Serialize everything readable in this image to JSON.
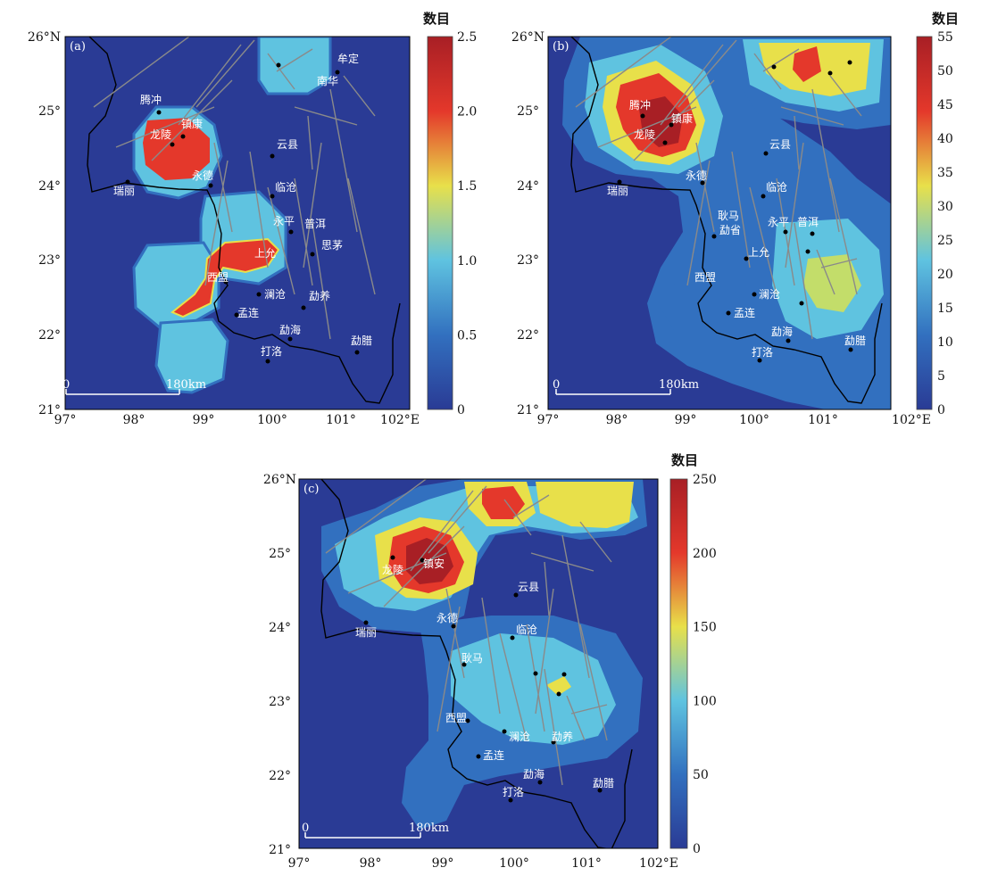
{
  "colorbar_title": "数目",
  "axis": {
    "lon_ticks": [
      "97°",
      "98°",
      "99°",
      "100°",
      "101°",
      "102°E"
    ],
    "lat_ticks": [
      "21°",
      "22°",
      "23°",
      "24°",
      "25°",
      "26°N"
    ],
    "lon_range": [
      97,
      102
    ],
    "lat_range": [
      21,
      26
    ]
  },
  "scale_bar": {
    "start": "0",
    "end": "180km"
  },
  "colors": {
    "background": "#2a3b95",
    "cmap": [
      "#2a3b95",
      "#3270bf",
      "#5fc3e0",
      "#e8e04a",
      "#e4382b",
      "#a81f25"
    ],
    "fault": "#8a8a8a",
    "border": "#000000"
  },
  "panels": [
    {
      "id": "a",
      "label": "(a)",
      "colorbar": {
        "max": 2.5,
        "ticks": [
          "0",
          "0.5",
          "1.0",
          "1.5",
          "2.0",
          "2.5"
        ]
      },
      "cities": [
        "牟定",
        "南华",
        "腾冲",
        "龙陵",
        "镇康",
        "云县",
        "永德",
        "临沧",
        "瑞丽",
        "永平",
        "普洱",
        "思茅",
        "上允",
        "西盟",
        "澜沧",
        "勐养",
        "孟连",
        "勐海",
        "勐腊",
        "打洛"
      ]
    },
    {
      "id": "b",
      "label": "(b)",
      "colorbar": {
        "max": 55,
        "ticks": [
          "0",
          "5",
          "10",
          "15",
          "20",
          "25",
          "30",
          "35",
          "40",
          "45",
          "50",
          "55"
        ]
      },
      "cities": [
        "腾冲",
        "龙陵",
        "镇康",
        "云县",
        "永德",
        "瑞丽",
        "临沧",
        "耿马",
        "勐省",
        "永平",
        "普洱",
        "上允",
        "西盟",
        "澜沧",
        "孟连",
        "勐海",
        "勐腊",
        "打洛"
      ]
    },
    {
      "id": "c",
      "label": "(c)",
      "colorbar": {
        "max": 250,
        "ticks": [
          "0",
          "50",
          "100",
          "150",
          "200",
          "250"
        ]
      },
      "cities": [
        "龙陵",
        "镇安",
        "云县",
        "永德",
        "瑞丽",
        "临沧",
        "耿马",
        "西盟",
        "澜沧",
        "勐养",
        "孟连",
        "勐海",
        "打洛",
        "勐腊"
      ]
    }
  ]
}
